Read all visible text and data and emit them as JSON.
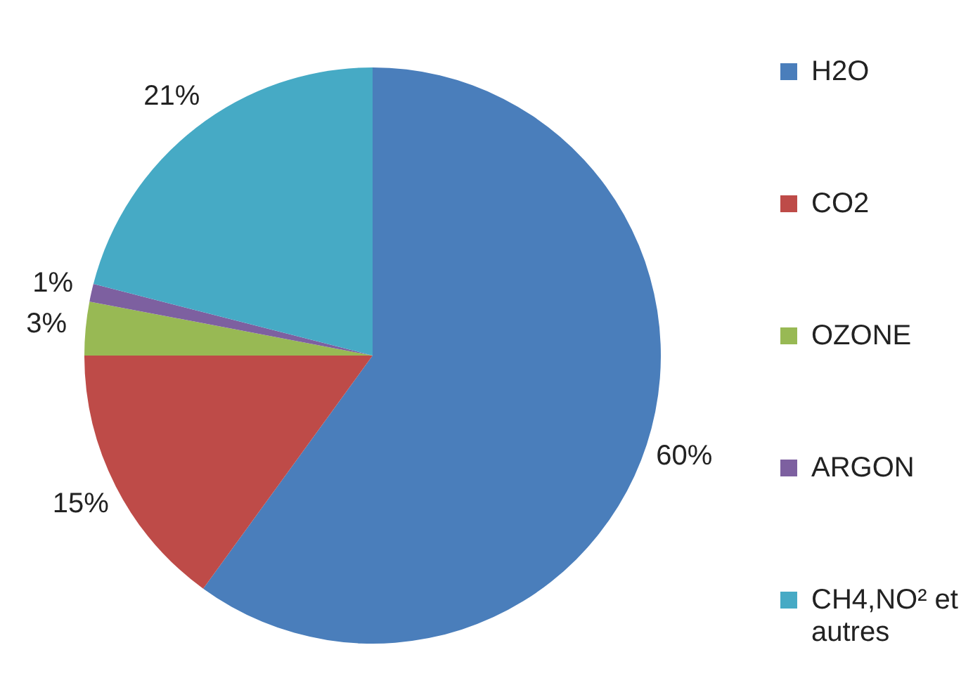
{
  "chart_data": {
    "type": "pie",
    "categories": [
      "H2O",
      "CO2",
      "OZONE",
      "ARGON",
      "CH4,NO² et autres"
    ],
    "values": [
      60,
      15,
      3,
      1,
      21
    ],
    "colors": [
      "#4a7ebb",
      "#be4b48",
      "#98b954",
      "#7d60a0",
      "#46aac5"
    ],
    "value_labels": [
      "60%",
      "15%",
      "3%",
      "1%",
      "21%"
    ],
    "legend": "right"
  }
}
